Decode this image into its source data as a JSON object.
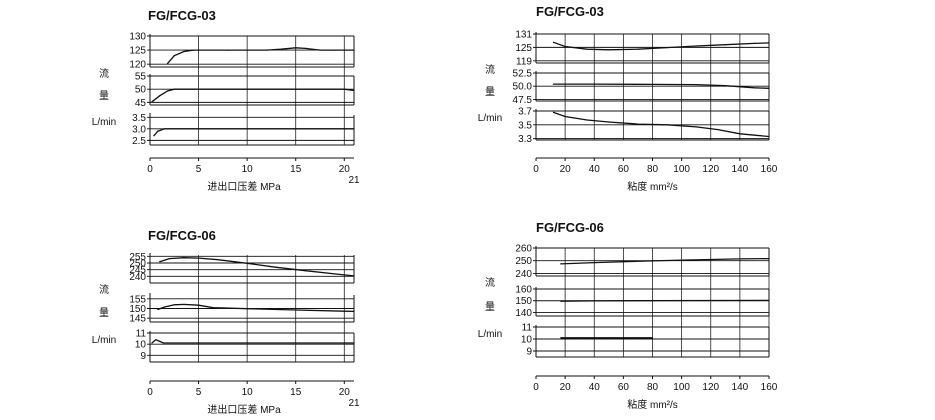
{
  "ylabel": {
    "char1": "流",
    "char2": "量",
    "unit": "L/min"
  },
  "chart_data": [
    {
      "type": "line",
      "title": "FG/FCG-03",
      "xlabel": "进出口压差  MPa",
      "x_ticks": [
        "0",
        "5",
        "10",
        "15",
        "20"
      ],
      "x_end_label": "21",
      "xlim": [
        0,
        21
      ],
      "panels": [
        {
          "ylim": [
            119,
            130
          ],
          "y_ticks": [
            120,
            125,
            130
          ],
          "series": [
            {
              "x": [
                1.8,
                2.5,
                3.5,
                4.5,
                5,
                8,
                12,
                13.5,
                15,
                16,
                17.5,
                19,
                21
              ],
              "y": [
                120.2,
                123,
                124.5,
                125,
                125,
                125,
                125,
                125.3,
                125.8,
                125.6,
                125,
                125,
                125
              ]
            }
          ]
        },
        {
          "ylim": [
            44,
            55
          ],
          "y_ticks": [
            45,
            50,
            55
          ],
          "series": [
            {
              "x": [
                0.2,
                1,
                1.8,
                2.5,
                3.5,
                5,
                10,
                15,
                20,
                21
              ],
              "y": [
                45.2,
                47.5,
                49.3,
                50,
                50,
                50,
                50,
                50,
                50,
                49.5
              ]
            }
          ]
        },
        {
          "ylim": [
            2.3,
            3.6
          ],
          "y_ticks": [
            2.5,
            3.0,
            3.5
          ],
          "y_tick_labels": [
            "2.5",
            "3.0",
            "3.5"
          ],
          "series": [
            {
              "x": [
                0.4,
                0.8,
                1.5,
                2,
                5,
                10,
                15,
                20,
                21
              ],
              "y": [
                2.7,
                2.9,
                3.0,
                3.0,
                3.0,
                3.0,
                3.0,
                3.0,
                3.0
              ]
            }
          ]
        }
      ]
    },
    {
      "type": "line",
      "title": "FG/FCG-03",
      "xlabel": "粘度  mm²/s",
      "x_ticks": [
        "0",
        "20",
        "40",
        "60",
        "80",
        "100",
        "120",
        "140",
        "160"
      ],
      "xlim": [
        0,
        160
      ],
      "panels": [
        {
          "ylim": [
            118,
            131
          ],
          "y_ticks": [
            119,
            125,
            131
          ],
          "series": [
            {
              "x": [
                12,
                20,
                35,
                50,
                70,
                90,
                110,
                130,
                150,
                160
              ],
              "y": [
                127.3,
                125.4,
                124.2,
                123.9,
                124.2,
                124.9,
                125.6,
                126.2,
                126.8,
                127
              ]
            }
          ]
        },
        {
          "ylim": [
            47.2,
            52.5
          ],
          "y_ticks": [
            47.5,
            50.0,
            52.5
          ],
          "y_tick_labels": [
            "47.5",
            "50.0",
            "52.5"
          ],
          "series": [
            {
              "x": [
                12,
                40,
                80,
                110,
                130,
                150,
                160
              ],
              "y": [
                50.4,
                50.4,
                50.35,
                50.3,
                50.1,
                49.7,
                49.6
              ]
            }
          ]
        },
        {
          "ylim": [
            3.28,
            3.7
          ],
          "y_ticks": [
            3.3,
            3.5,
            3.7
          ],
          "y_tick_labels": [
            "3.3",
            "3.5",
            "3.7"
          ],
          "series": [
            {
              "x": [
                12,
                20,
                35,
                50,
                70,
                90,
                110,
                125,
                140,
                160
              ],
              "y": [
                3.68,
                3.62,
                3.57,
                3.54,
                3.51,
                3.5,
                3.47,
                3.43,
                3.37,
                3.33
              ]
            }
          ]
        }
      ]
    },
    {
      "type": "line",
      "title": "FG/FCG-06",
      "xlabel": "进出口压差  MPa",
      "x_ticks": [
        "0",
        "5",
        "10",
        "15",
        "20"
      ],
      "x_end_label": "21",
      "xlim": [
        0,
        21
      ],
      "panels": [
        {
          "ylim": [
            235,
            256
          ],
          "y_ticks": [
            240,
            245,
            250,
            255
          ],
          "series": [
            {
              "x": [
                1,
                2,
                3.5,
                5,
                7,
                10,
                13,
                16,
                19,
                21
              ],
              "y": [
                251,
                253.3,
                254,
                253.7,
                252.5,
                249.8,
                246.8,
                244.2,
                241.8,
                240.3
              ]
            }
          ]
        },
        {
          "ylim": [
            143,
            157
          ],
          "y_ticks": [
            145,
            150,
            155
          ],
          "series": [
            {
              "x": [
                0.8,
                1.5,
                2.5,
                3.5,
                5,
                6.5,
                10,
                15,
                20,
                21
              ],
              "y": [
                149.5,
                150.8,
                151.9,
                152.1,
                151.7,
                150.4,
                149.9,
                149.2,
                148.6,
                148.5
              ]
            }
          ]
        },
        {
          "ylim": [
            8.4,
            11
          ],
          "y_ticks": [
            9,
            10,
            11
          ],
          "series": [
            {
              "x": [
                0.2,
                0.6,
                1,
                1.4,
                5,
                10,
                15,
                20,
                21
              ],
              "y": [
                10.1,
                10.4,
                10.25,
                10.1,
                10.1,
                10.1,
                10.1,
                10.1,
                10.1
              ]
            }
          ]
        }
      ]
    },
    {
      "type": "line",
      "title": "FG/FCG-06",
      "xlabel": "粘度  mm²/s",
      "x_ticks": [
        "0",
        "20",
        "40",
        "60",
        "80",
        "100",
        "120",
        "140",
        "160"
      ],
      "xlim": [
        0,
        160
      ],
      "panels": [
        {
          "ylim": [
            238,
            260
          ],
          "y_ticks": [
            240,
            250,
            260
          ],
          "series": [
            {
              "x": [
                17,
                40,
                60,
                80,
                100,
                120,
                140,
                160
              ],
              "y": [
                247.5,
                248.5,
                249.2,
                249.9,
                250.5,
                251,
                251.4,
                251.7
              ]
            }
          ]
        },
        {
          "ylim": [
            137,
            160
          ],
          "y_ticks": [
            140,
            150,
            160
          ],
          "series": [
            {
              "x": [
                17,
                40,
                80,
                120,
                160
              ],
              "y": [
                149.6,
                149.9,
                150.1,
                150.2,
                150.3
              ]
            }
          ]
        },
        {
          "ylim": [
            8.5,
            11
          ],
          "y_ticks": [
            9,
            10,
            11
          ],
          "series": [
            {
              "x": [
                17,
                30,
                50,
                70,
                80
              ],
              "y": [
                10.1,
                10.1,
                10.1,
                10.1,
                10.1
              ]
            }
          ]
        }
      ]
    }
  ]
}
